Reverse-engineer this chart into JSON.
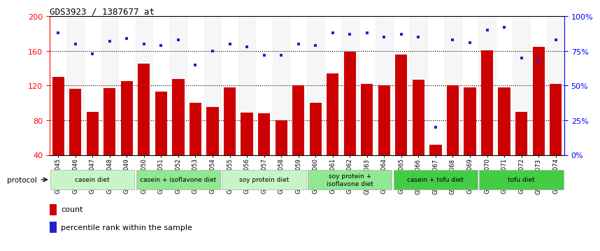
{
  "title": "GDS3923 / 1387677_at",
  "samples": [
    "GSM586045",
    "GSM586046",
    "GSM586047",
    "GSM586048",
    "GSM586049",
    "GSM586050",
    "GSM586051",
    "GSM586052",
    "GSM586053",
    "GSM586054",
    "GSM586055",
    "GSM586056",
    "GSM586057",
    "GSM586058",
    "GSM586059",
    "GSM586060",
    "GSM586061",
    "GSM586062",
    "GSM586063",
    "GSM586064",
    "GSM586065",
    "GSM586066",
    "GSM586067",
    "GSM586068",
    "GSM586069",
    "GSM586070",
    "GSM586071",
    "GSM586072",
    "GSM586073",
    "GSM586074"
  ],
  "counts": [
    130,
    116,
    90,
    117,
    125,
    145,
    113,
    128,
    100,
    95,
    118,
    89,
    88,
    80,
    120,
    100,
    134,
    159,
    122,
    120,
    156,
    127,
    52,
    120,
    118,
    161,
    118,
    90,
    165,
    122
  ],
  "percentile_ranks": [
    88,
    80,
    73,
    82,
    84,
    80,
    79,
    83,
    65,
    75,
    80,
    78,
    72,
    72,
    80,
    79,
    88,
    87,
    88,
    85,
    87,
    85,
    20,
    83,
    81,
    90,
    92,
    70,
    68,
    83
  ],
  "groups": [
    {
      "label": "casein diet",
      "start": 0,
      "end": 5,
      "color": "#c8f5c8"
    },
    {
      "label": "casein + isoflavone diet",
      "start": 5,
      "end": 10,
      "color": "#90e890"
    },
    {
      "label": "soy protein diet",
      "start": 10,
      "end": 15,
      "color": "#c8f5c8"
    },
    {
      "label": "soy protein +\nisoflavone diet",
      "start": 15,
      "end": 20,
      "color": "#90e890"
    },
    {
      "label": "casein + tofu diet",
      "start": 20,
      "end": 25,
      "color": "#44cc44"
    },
    {
      "label": "tofu diet",
      "start": 25,
      "end": 30,
      "color": "#44cc44"
    }
  ],
  "bar_color": "#cc0000",
  "percentile_color": "#2222cc",
  "ylim_left": [
    40,
    200
  ],
  "ylim_right": [
    0,
    100
  ],
  "yticks_left": [
    40,
    80,
    120,
    160,
    200
  ],
  "yticks_right": [
    0,
    25,
    50,
    75,
    100
  ],
  "ytick_labels_right": [
    "0%",
    "25%",
    "50%",
    "75%",
    "100%"
  ],
  "grid_levels": [
    80,
    120,
    160
  ],
  "bar_width": 0.7,
  "legend_count_label": "count",
  "legend_percentile_label": "percentile rank within the sample",
  "protocol_label": "protocol"
}
